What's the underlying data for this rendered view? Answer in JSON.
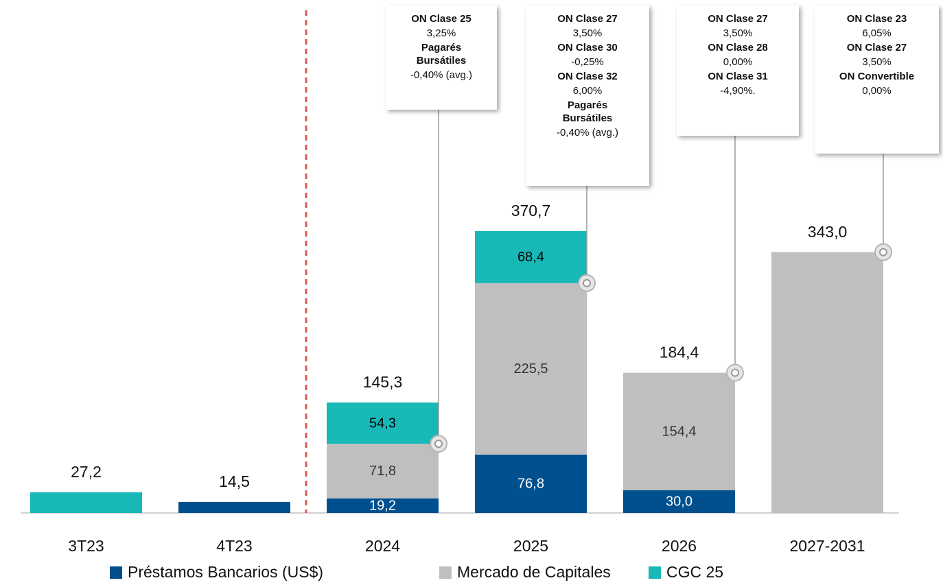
{
  "chart_data": {
    "type": "stacked-bar",
    "categories": [
      "3T23",
      "4T23",
      "2024",
      "2025",
      "2026",
      "2027-2031"
    ],
    "series": [
      {
        "name": "Préstamos Bancarios (US$)",
        "color": "#00508f",
        "label_color": "#ffffff",
        "values": [
          null,
          14.5,
          19.2,
          76.8,
          30.0,
          null
        ],
        "value_labels": [
          null,
          null,
          "19,2",
          "76,8",
          "30,0",
          null
        ]
      },
      {
        "name": "Mercado de Capitales",
        "color": "#bfbfbf",
        "label_color": "#333333",
        "values": [
          null,
          null,
          71.8,
          225.5,
          154.4,
          343.0
        ],
        "value_labels": [
          null,
          null,
          "71,8",
          "225,5",
          "154,4",
          null
        ]
      },
      {
        "name": "CGC 25",
        "color": "#17b8b6",
        "label_color": "#000000",
        "values": [
          27.2,
          null,
          54.3,
          68.4,
          null,
          null
        ],
        "value_labels": [
          null,
          null,
          "54,3",
          "68,4",
          null,
          null
        ]
      }
    ],
    "totals": [
      27.2,
      14.5,
      145.3,
      370.7,
      184.4,
      343.0
    ],
    "total_labels": [
      "27,2",
      "14,5",
      "145,3",
      "370,7",
      "184,4",
      "343,0"
    ],
    "annotations": [
      {
        "items": [
          {
            "title": "ON Clase 25",
            "value": "3,25%"
          },
          {
            "title": "Pagarés Bursátiles",
            "value": "-0,40% (avg.)"
          }
        ]
      },
      {
        "items": [
          {
            "title": "ON Clase 27",
            "value": "3,50%"
          },
          {
            "title": "ON Clase 30",
            "value": "-0,25%"
          },
          {
            "title": "ON Clase 32",
            "value": "6,00%"
          },
          {
            "title": "Pagarés Bursátiles",
            "value": "-0,40% (avg.)"
          }
        ]
      },
      {
        "items": [
          {
            "title": "ON Clase 27",
            "value": "3,50%"
          },
          {
            "title": "ON Clase 28",
            "value": "0,00%"
          },
          {
            "title": "ON Clase 31",
            "value": "-4,90%."
          }
        ]
      },
      {
        "items": [
          {
            "title": "ON Clase 23",
            "value": "6,05%"
          },
          {
            "title": "ON Clase 27",
            "value": "3,50%"
          },
          {
            "title": "ON Convertible",
            "value": "0,00%"
          }
        ]
      }
    ]
  }
}
